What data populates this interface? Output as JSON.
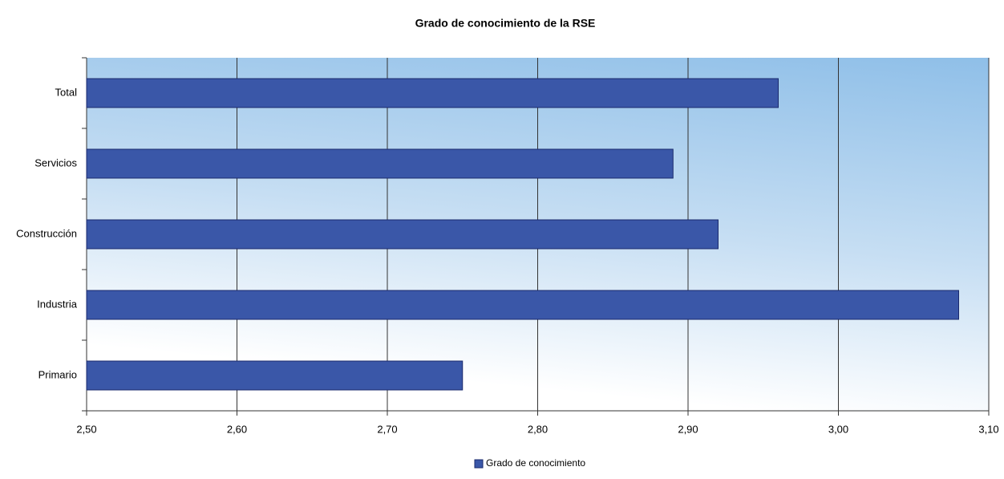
{
  "chart_data": {
    "type": "bar",
    "orientation": "horizontal",
    "title": "Grado de conocimiento de la RSE",
    "categories": [
      "Total",
      "Servicios",
      "Construcción",
      "Industria",
      "Primario"
    ],
    "series": [
      {
        "name": "Grado de conocimiento",
        "color": "#3a57a8",
        "values": [
          2.96,
          2.89,
          2.92,
          3.08,
          2.75
        ]
      }
    ],
    "xlim": [
      2.5,
      3.1
    ],
    "xticks": [
      {
        "value": 2.5,
        "label": "2,50"
      },
      {
        "value": 2.6,
        "label": "2,60"
      },
      {
        "value": 2.7,
        "label": "2,70"
      },
      {
        "value": 2.8,
        "label": "2,80"
      },
      {
        "value": 2.9,
        "label": "2,90"
      },
      {
        "value": 3.0,
        "label": "3,00"
      },
      {
        "value": 3.1,
        "label": "3,10"
      }
    ],
    "grid": true,
    "legend": "bottom"
  }
}
